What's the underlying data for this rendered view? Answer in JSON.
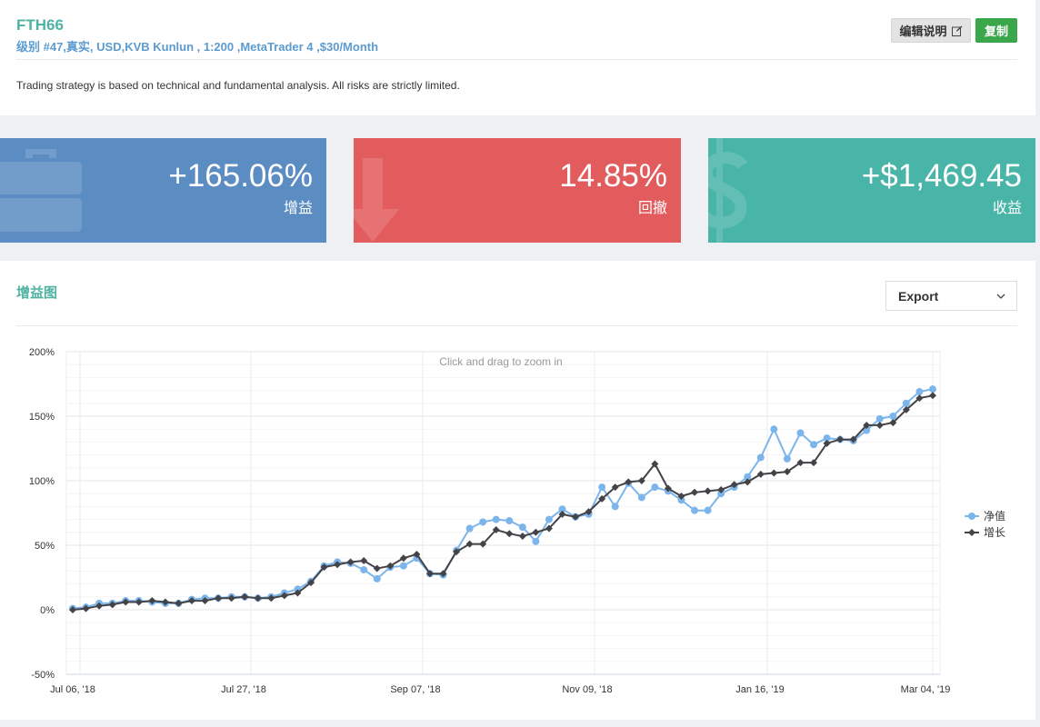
{
  "account": {
    "name": "FTH66",
    "meta": "级别 #47,真实, USD,KVB Kunlun , 1:200 ,MetaTrader 4 ,$30/Month",
    "description": "Trading strategy is based on technical and fundamental analysis. All risks are strictly limited."
  },
  "buttons": {
    "edit_label": "编辑说明",
    "copy_label": "复制"
  },
  "stats": [
    {
      "value": "+165.06%",
      "label": "增益",
      "color": "#5b8dc2",
      "icon": "briefcase-icon"
    },
    {
      "value": "14.85%",
      "label": "回撤",
      "color": "#e25b5d",
      "icon": "arrow-down-icon"
    },
    {
      "value": "+$1,469.45",
      "label": "收益",
      "color": "#49b5a9",
      "icon": "dollar-icon"
    }
  ],
  "chart_section": {
    "title": "增益图",
    "export_label": "Export",
    "zoom_hint": "Click and drag to zoom in"
  },
  "chart_data": {
    "type": "line",
    "title": "",
    "xlabel": "",
    "ylabel": "",
    "ylim": [
      -50,
      200
    ],
    "yticks": [
      "200%",
      "150%",
      "100%",
      "50%",
      "0%",
      "-50%"
    ],
    "xticks": [
      "Jul 06, '18",
      "Jul 27, '18",
      "Sep 07, '18",
      "Nov 09, '18",
      "Jan 16, '19",
      "Mar 04, '19"
    ],
    "legend": "right",
    "series": [
      {
        "name": "净值",
        "color": "#7cb5ec",
        "values": [
          1,
          2,
          5,
          5,
          7,
          7,
          6,
          5,
          5,
          8,
          9,
          9,
          10,
          10,
          9,
          10,
          13,
          16,
          22,
          34,
          37,
          36,
          31,
          24,
          33,
          34,
          40,
          28,
          27,
          46,
          63,
          68,
          70,
          69,
          64,
          53,
          70,
          78,
          72,
          74,
          95,
          80,
          98,
          87,
          95,
          92,
          85,
          77,
          77,
          90,
          95,
          103,
          118,
          140,
          117,
          137,
          128,
          133,
          132,
          131,
          139,
          148,
          150,
          160,
          169,
          171
        ]
      },
      {
        "name": "增长",
        "color": "#434348",
        "values": [
          0,
          1,
          3,
          4,
          6,
          6,
          7,
          6,
          5,
          7,
          7,
          9,
          9,
          10,
          9,
          9,
          11,
          13,
          21,
          33,
          35,
          37,
          38,
          32,
          34,
          40,
          43,
          28,
          28,
          45,
          51,
          51,
          62,
          59,
          57,
          60,
          63,
          74,
          72,
          76,
          86,
          95,
          99,
          100,
          113,
          94,
          88,
          91,
          92,
          93,
          97,
          99,
          105,
          106,
          107,
          114,
          114,
          129,
          132,
          132,
          143,
          143,
          145,
          155,
          164,
          166
        ]
      }
    ]
  }
}
